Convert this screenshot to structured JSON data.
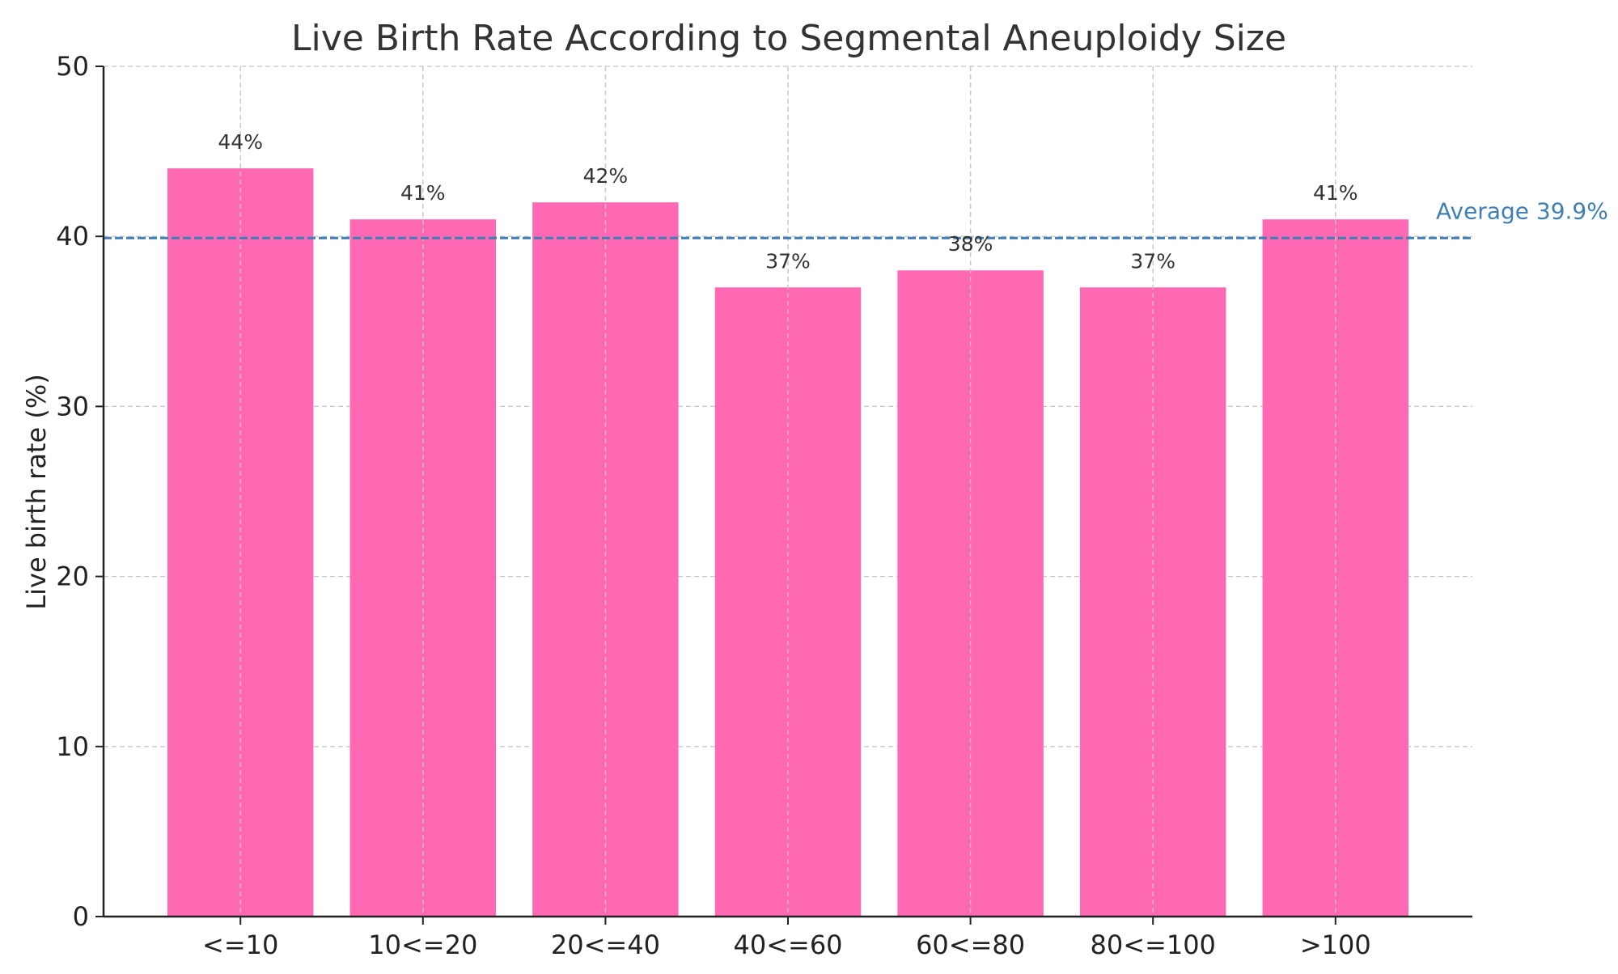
{
  "chart_data": {
    "type": "bar",
    "title": "Live Birth Rate According to Segmental Aneuploidy Size",
    "xlabel": "",
    "ylabel": "Live birth rate (%)",
    "categories": [
      "<=10",
      "10<=20",
      "20<=40",
      "40<=60",
      "60<=80",
      "80<=100",
      ">100"
    ],
    "values": [
      44,
      41,
      42,
      37,
      38,
      37,
      41
    ],
    "data_labels": [
      "44%",
      "41%",
      "42%",
      "37%",
      "38%",
      "37%",
      "41%"
    ],
    "ylim": [
      0,
      50
    ],
    "yticks": [
      0,
      10,
      20,
      30,
      40,
      50
    ],
    "grid": true,
    "bar_color": "#ff69b4",
    "reference_line": {
      "value": 39.9,
      "label": "Average 39.9%",
      "color": "#3f7fb5",
      "style": "dashed"
    }
  }
}
